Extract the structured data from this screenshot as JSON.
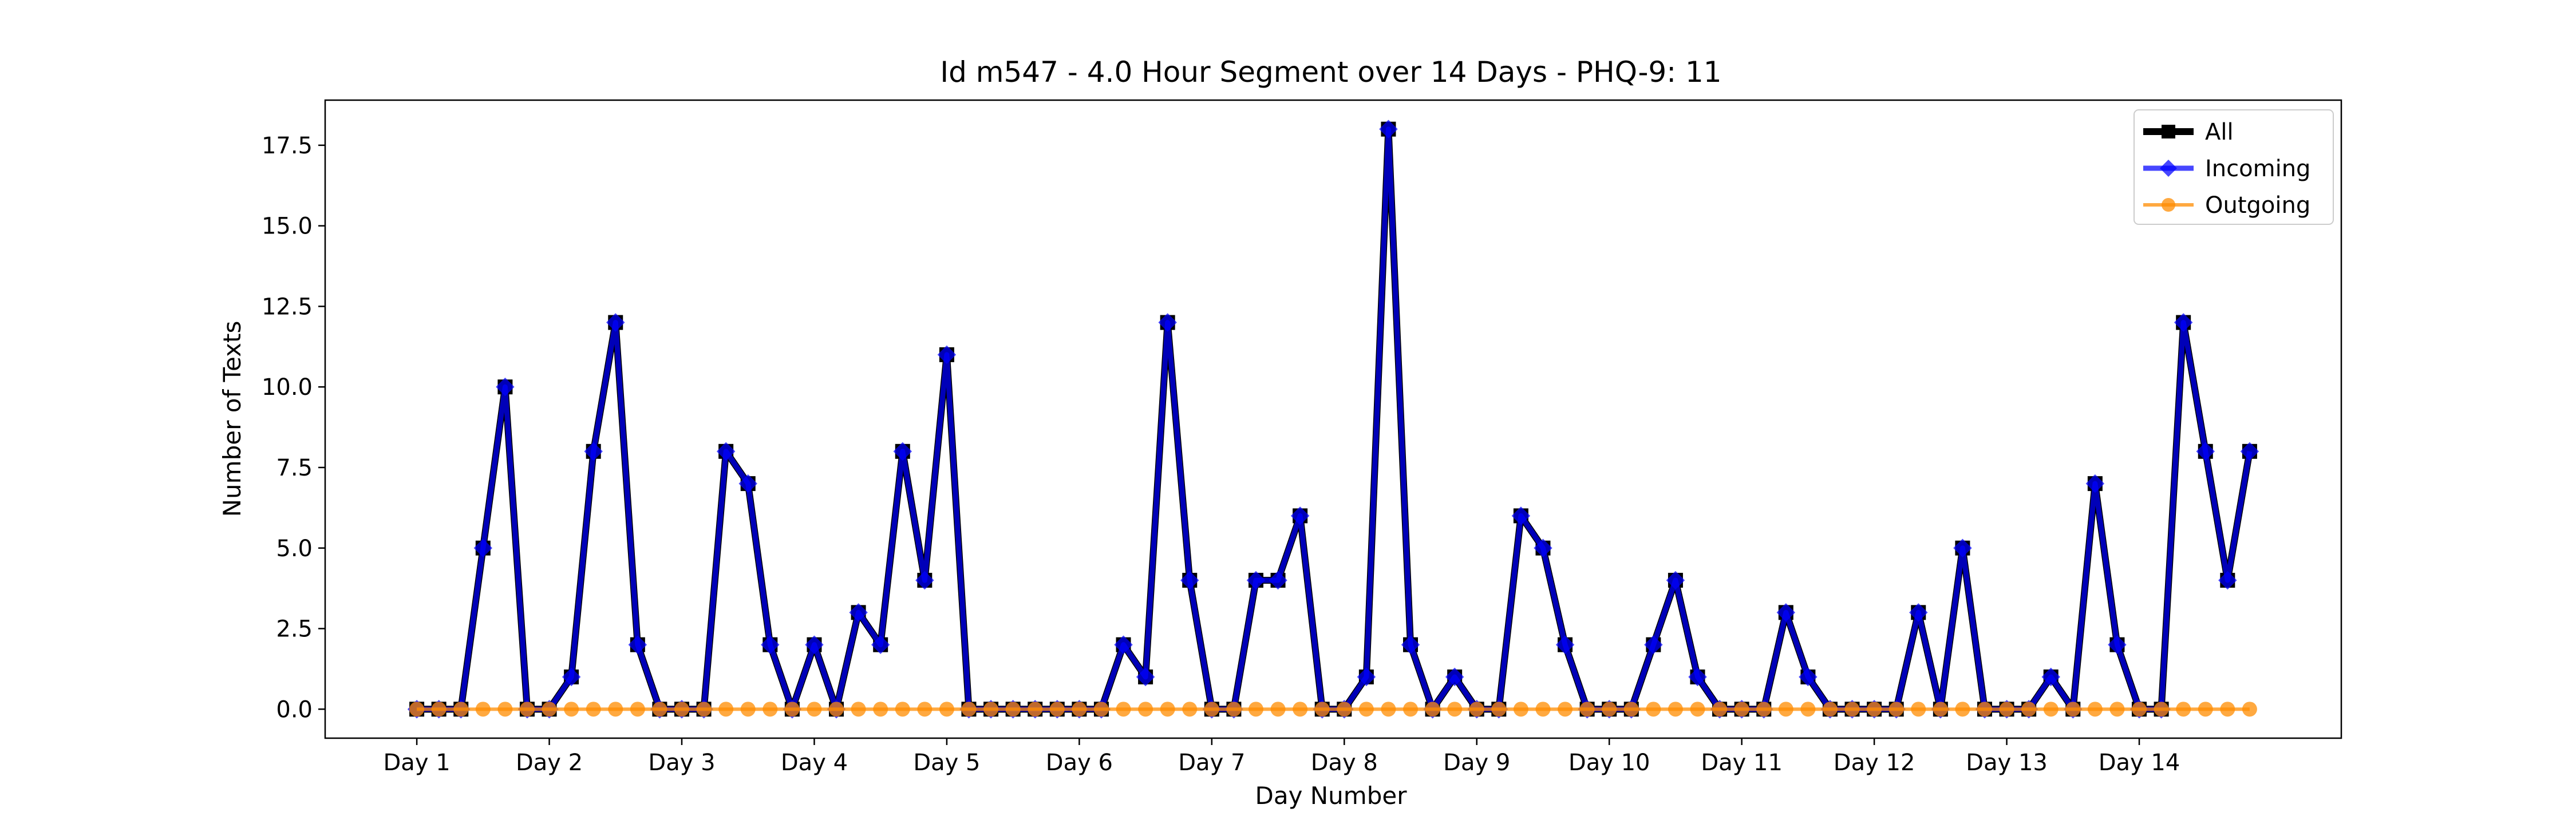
{
  "chart_data": {
    "type": "line",
    "title": "Id m547 - 4.0 Hour Segment over 14 Days - PHQ-9: 11",
    "xlabel": "Day Number",
    "ylabel": "Number of Texts",
    "ylim": [
      -0.9,
      18.9
    ],
    "y_ticks": [
      0.0,
      2.5,
      5.0,
      7.5,
      10.0,
      12.5,
      15.0,
      17.5
    ],
    "y_tick_labels": [
      "0.0",
      "2.5",
      "5.0",
      "7.5",
      "10.0",
      "12.5",
      "15.0",
      "17.5"
    ],
    "x_ticks": [
      0,
      6,
      12,
      18,
      24,
      30,
      36,
      42,
      48,
      54,
      60,
      66,
      72,
      78
    ],
    "x_tick_labels": [
      "Day 1",
      "Day 2",
      "Day 3",
      "Day 4",
      "Day 5",
      "Day 6",
      "Day 7",
      "Day 8",
      "Day 9",
      "Day 10",
      "Day 11",
      "Day 12",
      "Day 13",
      "Day 14"
    ],
    "grid": false,
    "legend_position": "top-right",
    "series": [
      {
        "name": "All",
        "color": "#000000",
        "marker": "square",
        "values": [
          0,
          0,
          0,
          5,
          10,
          0,
          0,
          1,
          8,
          12,
          2,
          0,
          0,
          0,
          8,
          7,
          2,
          0,
          2,
          0,
          3,
          2,
          8,
          4,
          11,
          0,
          0,
          0,
          0,
          0,
          0,
          0,
          2,
          1,
          12,
          4,
          0,
          0,
          4,
          4,
          6,
          0,
          0,
          1,
          18,
          2,
          0,
          1,
          0,
          0,
          6,
          5,
          2,
          0,
          0,
          0,
          2,
          4,
          1,
          0,
          0,
          0,
          3,
          1,
          0,
          0,
          0,
          0,
          3,
          0,
          5,
          0,
          0,
          0,
          1,
          0,
          7,
          2,
          0,
          0,
          12,
          8,
          4,
          8
        ]
      },
      {
        "name": "Incoming",
        "color": "#0000ff",
        "marker": "diamond",
        "values": [
          0,
          0,
          0,
          5,
          10,
          0,
          0,
          1,
          8,
          12,
          2,
          0,
          0,
          0,
          8,
          7,
          2,
          0,
          2,
          0,
          3,
          2,
          8,
          4,
          11,
          0,
          0,
          0,
          0,
          0,
          0,
          0,
          2,
          1,
          12,
          4,
          0,
          0,
          4,
          4,
          6,
          0,
          0,
          1,
          18,
          2,
          0,
          1,
          0,
          0,
          6,
          5,
          2,
          0,
          0,
          0,
          2,
          4,
          1,
          0,
          0,
          0,
          3,
          1,
          0,
          0,
          0,
          0,
          3,
          0,
          5,
          0,
          0,
          0,
          1,
          0,
          7,
          2,
          0,
          0,
          12,
          8,
          4,
          8
        ]
      },
      {
        "name": "Outgoing",
        "color": "#ff8c00",
        "marker": "circle",
        "values": [
          0,
          0,
          0,
          0,
          0,
          0,
          0,
          0,
          0,
          0,
          0,
          0,
          0,
          0,
          0,
          0,
          0,
          0,
          0,
          0,
          0,
          0,
          0,
          0,
          0,
          0,
          0,
          0,
          0,
          0,
          0,
          0,
          0,
          0,
          0,
          0,
          0,
          0,
          0,
          0,
          0,
          0,
          0,
          0,
          0,
          0,
          0,
          0,
          0,
          0,
          0,
          0,
          0,
          0,
          0,
          0,
          0,
          0,
          0,
          0,
          0,
          0,
          0,
          0,
          0,
          0,
          0,
          0,
          0,
          0,
          0,
          0,
          0,
          0,
          0,
          0,
          0,
          0,
          0,
          0,
          0,
          0,
          0,
          0
        ]
      }
    ]
  }
}
